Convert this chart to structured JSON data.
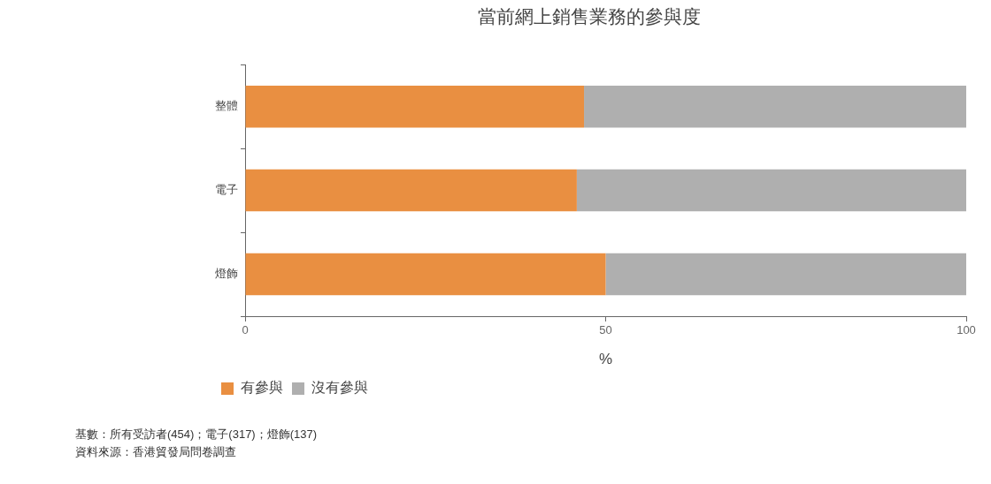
{
  "chart_data": {
    "type": "bar",
    "title": "當前網上銷售業務的參與度",
    "orientation": "horizontal",
    "stacked": true,
    "categories": [
      "整體",
      "電子",
      "燈飾"
    ],
    "series": [
      {
        "name": "有參與",
        "color": "#e98f41",
        "values": [
          47,
          46,
          50
        ]
      },
      {
        "name": "沒有參與",
        "color": "#afafaf",
        "values": [
          53,
          54,
          50
        ]
      }
    ],
    "xlabel": "%",
    "xlim": [
      0,
      100
    ],
    "xticks": [
      0,
      50,
      100
    ],
    "grid": false,
    "legend": "bottom left",
    "annotations": [
      "基數：所有受訪者(454)；電子(317)；燈飾(137)",
      "資料來源：香港貿發局問卷調查"
    ]
  }
}
